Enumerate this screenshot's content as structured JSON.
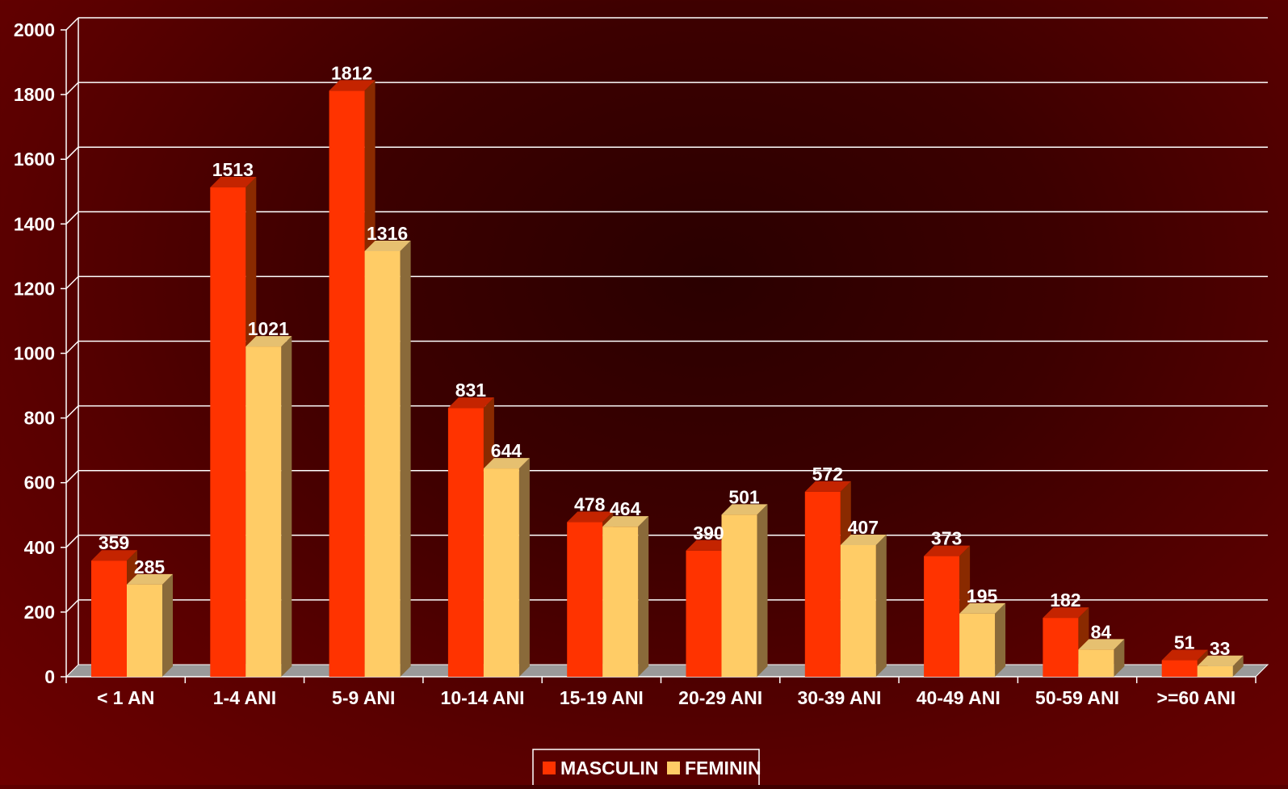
{
  "chart_data": {
    "type": "bar",
    "title": "",
    "xlabel": "",
    "ylabel": "",
    "ylim": [
      0,
      2000
    ],
    "yticks": [
      0,
      200,
      400,
      600,
      800,
      1000,
      1200,
      1400,
      1600,
      1800,
      2000
    ],
    "categories": [
      "< 1 AN",
      "1-4 ANI",
      "5-9 ANI",
      "10-14 ANI",
      "15-19 ANI",
      "20-29 ANI",
      "30-39 ANI",
      "40-49 ANI",
      "50-59 ANI",
      ">=60 ANI"
    ],
    "series": [
      {
        "name": "MASCULIN",
        "values": [
          359,
          1513,
          1812,
          831,
          478,
          390,
          572,
          373,
          182,
          51
        ],
        "color": "#ff3300"
      },
      {
        "name": "FEMININ",
        "values": [
          285,
          1021,
          1316,
          644,
          464,
          501,
          407,
          195,
          84,
          33
        ],
        "color": "#ffcc66"
      }
    ],
    "grid": true,
    "legend_position": "bottom-center",
    "style": "3d-clustered-column"
  }
}
